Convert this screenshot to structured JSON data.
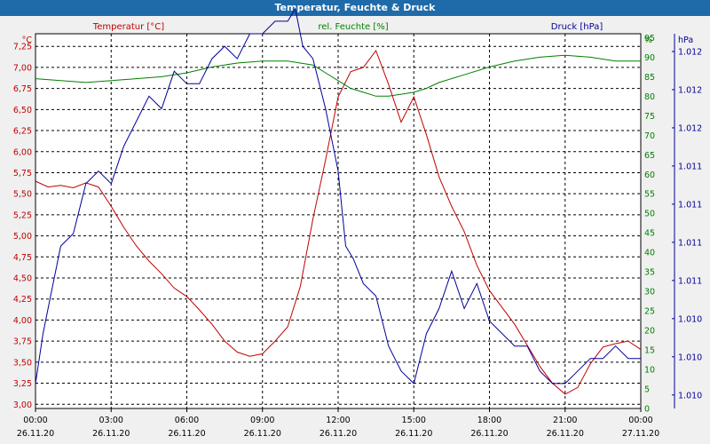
{
  "window": {
    "title": "Temperatur, Feuchte & Druck"
  },
  "colors": {
    "temperature": "#c00000",
    "humidity": "#008000",
    "pressure": "#000099",
    "titlebar": "#1f6aa8"
  },
  "chart_data": {
    "type": "line",
    "title": "Temperatur, Feuchte & Druck",
    "grid": true,
    "x_axis": {
      "range": [
        "26.11.20 00:00",
        "27.11.20 00:00"
      ],
      "ticks": [
        {
          "time": "00:00",
          "date": "26.11.20"
        },
        {
          "time": "03:00",
          "date": "26.11.20"
        },
        {
          "time": "06:00",
          "date": "26.11.20"
        },
        {
          "time": "09:00",
          "date": "26.11.20"
        },
        {
          "time": "12:00",
          "date": "26.11.20"
        },
        {
          "time": "15:00",
          "date": "26.11.20"
        },
        {
          "time": "18:00",
          "date": "26.11.20"
        },
        {
          "time": "21:00",
          "date": "26.11.20"
        },
        {
          "time": "00:00",
          "date": "27.11.20"
        }
      ]
    },
    "axes": {
      "temperature": {
        "label": "Temperatur [°C]",
        "unit": "°C",
        "range": [
          2.95,
          7.4
        ],
        "ticks": [
          "7,25",
          "7,00",
          "6,75",
          "6,50",
          "6,25",
          "6,00",
          "5,75",
          "5,50",
          "5,25",
          "5,00",
          "4,75",
          "4,50",
          "4,25",
          "4,00",
          "3,75",
          "3,50",
          "3,25",
          "3,00"
        ]
      },
      "humidity": {
        "label": "rel. Feuchte [%]",
        "unit": "%",
        "range": [
          0,
          96
        ],
        "ticks": [
          "95",
          "90",
          "85",
          "80",
          "75",
          "70",
          "65",
          "60",
          "55",
          "50",
          "45",
          "40",
          "35",
          "30",
          "25",
          "20",
          "15",
          "10",
          "5",
          "0"
        ]
      },
      "pressure": {
        "label": "Druck [hPa]",
        "unit": "hPa",
        "range": [
          1.0095,
          1.0125
        ],
        "ticks": [
          "1.012",
          "1.012",
          "1.012",
          "1.011",
          "1.011",
          "1.011",
          "1.011",
          "1.010",
          "1.010",
          "1.010"
        ]
      }
    },
    "series": [
      {
        "name": "Temperatur [°C]",
        "axis": "temperature",
        "x_hours": [
          0,
          0.5,
          1,
          1.5,
          2,
          2.5,
          3,
          3.5,
          4,
          4.5,
          5,
          5.5,
          6,
          6.5,
          7,
          7.5,
          8,
          8.5,
          9,
          9.5,
          10,
          10.5,
          11,
          11.5,
          12,
          12.5,
          13,
          13.5,
          14,
          14.5,
          15,
          15.5,
          16,
          16.5,
          17,
          17.5,
          18,
          18.5,
          19,
          19.5,
          20,
          20.5,
          21,
          21.5,
          22,
          22.5,
          23,
          23.5,
          24
        ],
        "values": [
          5.65,
          5.58,
          5.6,
          5.57,
          5.63,
          5.58,
          5.35,
          5.1,
          4.88,
          4.7,
          4.55,
          4.38,
          4.28,
          4.12,
          3.95,
          3.75,
          3.62,
          3.57,
          3.6,
          3.75,
          3.92,
          4.4,
          5.2,
          5.9,
          6.65,
          6.95,
          7.0,
          7.2,
          6.8,
          6.35,
          6.65,
          6.2,
          5.7,
          5.35,
          5.05,
          4.65,
          4.35,
          4.15,
          3.95,
          3.7,
          3.45,
          3.25,
          3.12,
          3.2,
          3.48,
          3.68,
          3.72,
          3.75,
          3.65
        ]
      },
      {
        "name": "rel. Feuchte [%]",
        "axis": "humidity",
        "x_hours": [
          0,
          1,
          2,
          3,
          4,
          5,
          6,
          7,
          8,
          9,
          10,
          11,
          11.5,
          12,
          12.5,
          13,
          13.5,
          14,
          14.5,
          15,
          15.5,
          16,
          17,
          18,
          19,
          20,
          21,
          22,
          23,
          24
        ],
        "values": [
          84.5,
          84,
          83.5,
          84,
          84.5,
          85,
          86,
          87.5,
          88.5,
          89,
          89,
          88,
          86,
          84,
          82,
          81,
          80,
          80,
          80.5,
          81,
          82,
          83.5,
          85.5,
          87.5,
          89,
          90,
          90.5,
          90,
          89,
          89
        ]
      },
      {
        "name": "Druck [hPa]",
        "axis": "pressure",
        "x_hours": [
          0,
          0.3,
          0.6,
          1,
          1.5,
          2,
          2.5,
          3,
          3.5,
          4,
          4.5,
          5,
          5.5,
          6,
          6.5,
          7,
          7.5,
          8,
          8.5,
          9,
          9.5,
          10,
          10.3,
          10.6,
          11,
          11.5,
          12,
          12.3,
          12.6,
          13,
          13.5,
          14,
          14.5,
          15,
          15.5,
          16,
          16.5,
          17,
          17.5,
          18,
          18.5,
          19,
          19.5,
          20,
          20.5,
          21,
          21.5,
          22,
          22.5,
          23,
          23.5,
          24
        ],
        "values": [
          1.0097,
          1.0101,
          1.0104,
          1.0108,
          1.0109,
          1.0113,
          1.0114,
          1.0113,
          1.0116,
          1.0118,
          1.012,
          1.0119,
          1.0122,
          1.0121,
          1.0121,
          1.0123,
          1.0124,
          1.0123,
          1.0125,
          1.0125,
          1.0126,
          1.0126,
          1.0127,
          1.0124,
          1.0123,
          1.0119,
          1.0114,
          1.0108,
          1.0107,
          1.0105,
          1.0104,
          1.01,
          1.0098,
          1.0097,
          1.0101,
          1.0103,
          1.0106,
          1.0103,
          1.0105,
          1.0102,
          1.0101,
          1.01,
          1.01,
          1.0098,
          1.0097,
          1.0097,
          1.0098,
          1.0099,
          1.0099,
          1.01,
          1.0099,
          1.0099
        ]
      }
    ]
  }
}
